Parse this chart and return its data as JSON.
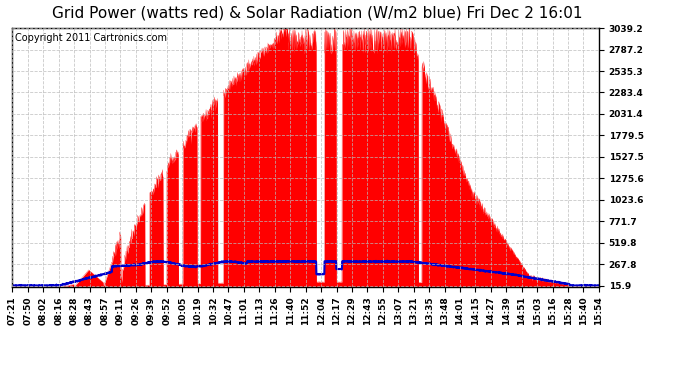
{
  "title": "Grid Power (watts red) & Solar Radiation (W/m2 blue) Fri Dec 2 16:01",
  "copyright_text": "Copyright 2011 Cartronics.com",
  "background_color": "#ffffff",
  "plot_bg_color": "#ffffff",
  "grid_color": "#bbbbbb",
  "y_ticks": [
    15.9,
    267.8,
    519.8,
    771.7,
    1023.6,
    1275.6,
    1527.5,
    1779.5,
    2031.4,
    2283.4,
    2535.3,
    2787.2,
    3039.2
  ],
  "y_min": 0,
  "y_max": 3039.2,
  "red_color": "#ff0000",
  "blue_color": "#0000cc",
  "title_fontsize": 11,
  "copyright_fontsize": 7,
  "tick_fontsize": 6.5
}
